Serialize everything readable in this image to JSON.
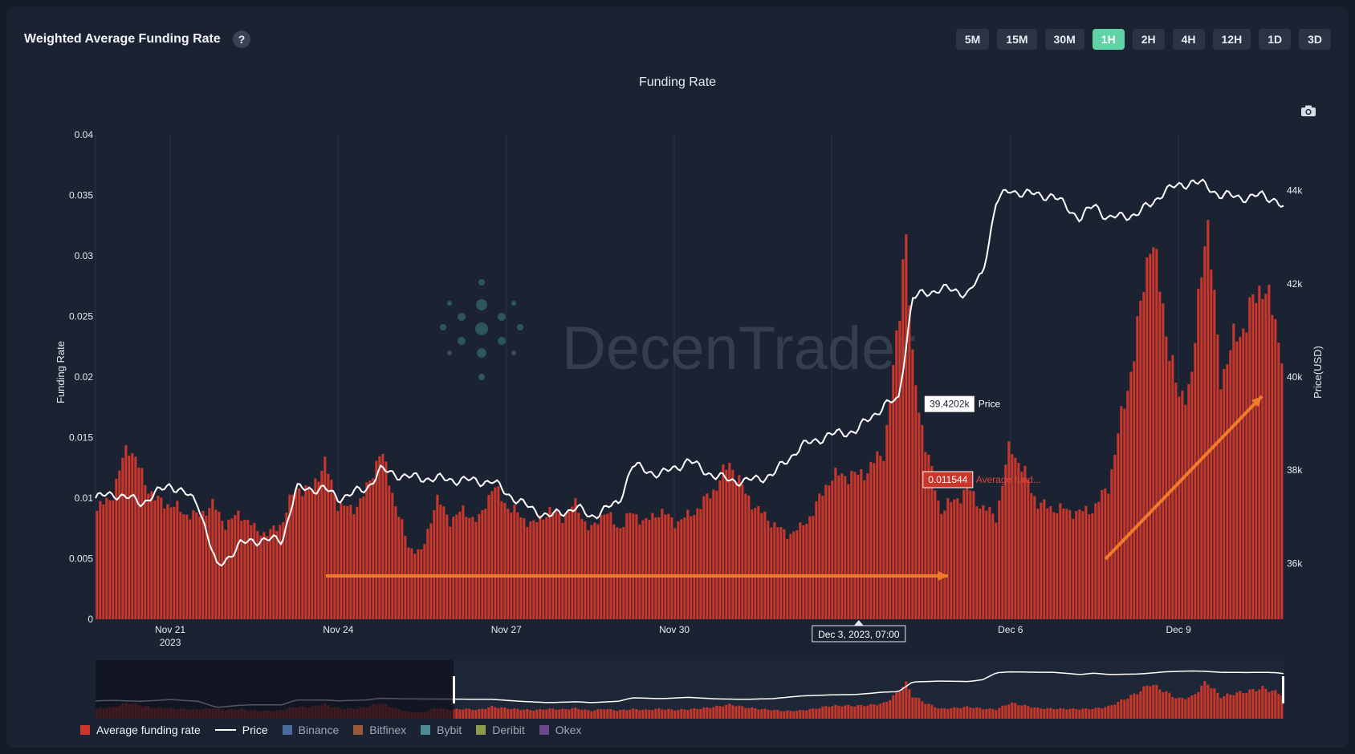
{
  "header": {
    "title": "Weighted Average Funding Rate",
    "help_label": "?"
  },
  "timeframes": [
    {
      "label": "5M",
      "active": false
    },
    {
      "label": "15M",
      "active": false
    },
    {
      "label": "30M",
      "active": false
    },
    {
      "label": "1H",
      "active": true
    },
    {
      "label": "2H",
      "active": false
    },
    {
      "label": "4H",
      "active": false
    },
    {
      "label": "12H",
      "active": false
    },
    {
      "label": "1D",
      "active": false
    },
    {
      "label": "3D",
      "active": false
    }
  ],
  "icons": {
    "help": "help-icon",
    "camera": "camera-icon"
  },
  "colors": {
    "background": "#1b2333",
    "bar": "#c9372b",
    "price_line": "#ffffff",
    "active_timeframe": "#5fd3a3",
    "annotation_arrow": "#f07b2c"
  },
  "watermark": "DecenTrader",
  "chart_data": {
    "type": "bar",
    "title": "Funding Rate",
    "ylabel": "Funding Rate",
    "y2label": "Price(USD)",
    "ylim": [
      0,
      0.04
    ],
    "y2lim": [
      34800,
      45200
    ],
    "yticks": [
      0,
      0.005,
      0.01,
      0.015,
      0.02,
      0.025,
      0.03,
      0.035,
      0.04
    ],
    "ytick_labels": [
      "0",
      "0.005",
      "0.01",
      "0.015",
      "0.02",
      "0.025",
      "0.03",
      "0.035",
      "0.04"
    ],
    "y2ticks": [
      36000,
      38000,
      40000,
      42000,
      44000
    ],
    "y2tick_labels": [
      "36k",
      "38k",
      "40k",
      "42k",
      "44k"
    ],
    "xlim": [
      "2023-11-19T16:00",
      "2023-12-10T21:00"
    ],
    "xticks": [
      "2023-11-21T00:00",
      "2023-11-24T00:00",
      "2023-11-27T00:00",
      "2023-11-30T00:00",
      "2023-12-06T00:00",
      "2023-12-09T00:00"
    ],
    "xtick_labels": [
      "Nov 21",
      "Nov 24",
      "Nov 27",
      "Nov 30",
      "Dec 6",
      "Dec 9"
    ],
    "xtick_year": "2023",
    "grid": true,
    "legend_placement": "bottom-left",
    "hover": {
      "x_label": "Dec 3, 2023, 07:00",
      "x": "2023-12-03T07:00",
      "price_label": "39.4202k",
      "price_value": 39420.2,
      "price_series": "Price",
      "rate_label": "0.011544",
      "rate_value": 0.011544,
      "rate_series": "Average fund..."
    },
    "series": [
      {
        "name": "Average funding rate",
        "type": "bar",
        "color": "#c9372b",
        "points": [
          [
            "2023-11-19T16:00",
            0.0088
          ],
          [
            "2023-11-20T00:00",
            0.0105
          ],
          [
            "2023-11-20T06:00",
            0.0147
          ],
          [
            "2023-11-20T12:00",
            0.0118
          ],
          [
            "2023-11-20T18:00",
            0.0098
          ],
          [
            "2023-11-21T00:00",
            0.0095
          ],
          [
            "2023-11-21T06:00",
            0.0088
          ],
          [
            "2023-11-21T12:00",
            0.0085
          ],
          [
            "2023-11-21T18:00",
            0.0095
          ],
          [
            "2023-11-22T00:00",
            0.0078
          ],
          [
            "2023-11-22T06:00",
            0.0088
          ],
          [
            "2023-11-22T12:00",
            0.0075
          ],
          [
            "2023-11-22T18:00",
            0.007
          ],
          [
            "2023-11-23T00:00",
            0.008
          ],
          [
            "2023-11-23T06:00",
            0.011
          ],
          [
            "2023-11-23T12:00",
            0.0105
          ],
          [
            "2023-11-23T18:00",
            0.013
          ],
          [
            "2023-11-24T00:00",
            0.0095
          ],
          [
            "2023-11-24T06:00",
            0.009
          ],
          [
            "2023-11-24T12:00",
            0.0105
          ],
          [
            "2023-11-24T18:00",
            0.014
          ],
          [
            "2023-11-25T00:00",
            0.01
          ],
          [
            "2023-11-25T06:00",
            0.006
          ],
          [
            "2023-11-25T12:00",
            0.0055
          ],
          [
            "2023-11-25T18:00",
            0.01
          ],
          [
            "2023-11-26T00:00",
            0.0082
          ],
          [
            "2023-11-26T06:00",
            0.009
          ],
          [
            "2023-11-26T12:00",
            0.008
          ],
          [
            "2023-11-26T18:00",
            0.011
          ],
          [
            "2023-11-27T00:00",
            0.0095
          ],
          [
            "2023-11-27T06:00",
            0.0085
          ],
          [
            "2023-11-27T12:00",
            0.0078
          ],
          [
            "2023-11-27T18:00",
            0.009
          ],
          [
            "2023-11-28T00:00",
            0.0085
          ],
          [
            "2023-11-28T06:00",
            0.0095
          ],
          [
            "2023-11-28T12:00",
            0.0072
          ],
          [
            "2023-11-28T18:00",
            0.009
          ],
          [
            "2023-11-29T00:00",
            0.0075
          ],
          [
            "2023-11-29T06:00",
            0.0088
          ],
          [
            "2023-11-29T12:00",
            0.008
          ],
          [
            "2023-11-29T18:00",
            0.009
          ],
          [
            "2023-11-30T00:00",
            0.008
          ],
          [
            "2023-11-30T06:00",
            0.0085
          ],
          [
            "2023-11-30T12:00",
            0.0095
          ],
          [
            "2023-11-30T18:00",
            0.011
          ],
          [
            "2023-12-01T00:00",
            0.013
          ],
          [
            "2023-12-01T06:00",
            0.0105
          ],
          [
            "2023-12-01T12:00",
            0.009
          ],
          [
            "2023-12-01T18:00",
            0.008
          ],
          [
            "2023-12-02T00:00",
            0.007
          ],
          [
            "2023-12-02T06:00",
            0.0075
          ],
          [
            "2023-12-02T12:00",
            0.009
          ],
          [
            "2023-12-02T18:00",
            0.0115
          ],
          [
            "2023-12-03T00:00",
            0.012
          ],
          [
            "2023-12-03T06:00",
            0.0118
          ],
          [
            "2023-12-03T12:00",
            0.0125
          ],
          [
            "2023-12-03T18:00",
            0.014
          ],
          [
            "2023-12-04T00:00",
            0.024
          ],
          [
            "2023-12-04T03:00",
            0.0335
          ],
          [
            "2023-12-04T06:00",
            0.021
          ],
          [
            "2023-12-04T12:00",
            0.014
          ],
          [
            "2023-12-04T18:00",
            0.009
          ],
          [
            "2023-12-05T00:00",
            0.0098
          ],
          [
            "2023-12-05T06:00",
            0.0108
          ],
          [
            "2023-12-05T12:00",
            0.0092
          ],
          [
            "2023-12-05T18:00",
            0.0085
          ],
          [
            "2023-12-06T00:00",
            0.0145
          ],
          [
            "2023-12-06T06:00",
            0.012
          ],
          [
            "2023-12-06T12:00",
            0.0095
          ],
          [
            "2023-12-06T18:00",
            0.0092
          ],
          [
            "2023-12-07T00:00",
            0.009
          ],
          [
            "2023-12-07T06:00",
            0.0088
          ],
          [
            "2023-12-07T12:00",
            0.0092
          ],
          [
            "2023-12-07T18:00",
            0.011
          ],
          [
            "2023-12-08T00:00",
            0.017
          ],
          [
            "2023-12-08T06:00",
            0.023
          ],
          [
            "2023-12-08T12:00",
            0.032
          ],
          [
            "2023-12-08T18:00",
            0.025
          ],
          [
            "2023-12-09T00:00",
            0.018
          ],
          [
            "2023-12-09T06:00",
            0.02
          ],
          [
            "2023-12-09T12:00",
            0.034
          ],
          [
            "2023-12-09T18:00",
            0.02
          ],
          [
            "2023-12-10T00:00",
            0.023
          ],
          [
            "2023-12-10T06:00",
            0.025
          ],
          [
            "2023-12-10T12:00",
            0.028
          ],
          [
            "2023-12-10T21:00",
            0.022
          ]
        ]
      },
      {
        "name": "Price",
        "type": "line",
        "axis": "y2",
        "color": "#ffffff",
        "points": [
          [
            "2023-11-19T16:00",
            37400
          ],
          [
            "2023-11-20T00:00",
            37500
          ],
          [
            "2023-11-20T12:00",
            37300
          ],
          [
            "2023-11-21T00:00",
            37700
          ],
          [
            "2023-11-21T12:00",
            37300
          ],
          [
            "2023-11-21T20:00",
            35900
          ],
          [
            "2023-11-22T06:00",
            36400
          ],
          [
            "2023-11-22T12:00",
            36500
          ],
          [
            "2023-11-23T00:00",
            36500
          ],
          [
            "2023-11-23T06:00",
            37600
          ],
          [
            "2023-11-23T18:00",
            37600
          ],
          [
            "2023-11-24T00:00",
            37400
          ],
          [
            "2023-11-24T12:00",
            37600
          ],
          [
            "2023-11-24T18:00",
            38000
          ],
          [
            "2023-11-25T06:00",
            37850
          ],
          [
            "2023-11-26T00:00",
            37800
          ],
          [
            "2023-11-26T18:00",
            37750
          ],
          [
            "2023-11-27T06:00",
            37300
          ],
          [
            "2023-11-27T18:00",
            37000
          ],
          [
            "2023-11-28T06:00",
            37200
          ],
          [
            "2023-11-28T12:00",
            37000
          ],
          [
            "2023-11-29T00:00",
            37300
          ],
          [
            "2023-11-29T06:00",
            38100
          ],
          [
            "2023-11-29T18:00",
            37900
          ],
          [
            "2023-11-30T06:00",
            38200
          ],
          [
            "2023-11-30T18:00",
            37850
          ],
          [
            "2023-12-01T06:00",
            37750
          ],
          [
            "2023-12-01T18:00",
            37900
          ],
          [
            "2023-12-02T06:00",
            38500
          ],
          [
            "2023-12-02T18:00",
            38750
          ],
          [
            "2023-12-03T06:00",
            38850
          ],
          [
            "2023-12-03T18:00",
            39400
          ],
          [
            "2023-12-04T00:00",
            39500
          ],
          [
            "2023-12-04T06:00",
            41700
          ],
          [
            "2023-12-04T18:00",
            41900
          ],
          [
            "2023-12-05T06:00",
            41800
          ],
          [
            "2023-12-05T12:00",
            42200
          ],
          [
            "2023-12-05T18:00",
            43800
          ],
          [
            "2023-12-06T00:00",
            44000
          ],
          [
            "2023-12-06T12:00",
            43900
          ],
          [
            "2023-12-06T18:00",
            43900
          ],
          [
            "2023-12-07T06:00",
            43400
          ],
          [
            "2023-12-07T12:00",
            43700
          ],
          [
            "2023-12-07T18:00",
            43400
          ],
          [
            "2023-12-08T06:00",
            43500
          ],
          [
            "2023-12-08T12:00",
            43700
          ],
          [
            "2023-12-08T18:00",
            44000
          ],
          [
            "2023-12-09T06:00",
            44200
          ],
          [
            "2023-12-09T12:00",
            44100
          ],
          [
            "2023-12-09T18:00",
            43900
          ],
          [
            "2023-12-10T06:00",
            43850
          ],
          [
            "2023-12-10T12:00",
            43900
          ],
          [
            "2023-12-10T18:00",
            43800
          ],
          [
            "2023-12-10T21:00",
            43600
          ]
        ]
      },
      {
        "name": "Binance",
        "type": "bar",
        "color": "#4a6a9a",
        "points": []
      },
      {
        "name": "Bitfinex",
        "type": "bar",
        "color": "#9a5a3a",
        "points": []
      },
      {
        "name": "Bybit",
        "type": "bar",
        "color": "#4f8a94",
        "points": []
      },
      {
        "name": "Deribit",
        "type": "bar",
        "color": "#8c9a4a",
        "points": []
      },
      {
        "name": "Okex",
        "type": "bar",
        "color": "#6a4a8a",
        "points": []
      }
    ]
  }
}
